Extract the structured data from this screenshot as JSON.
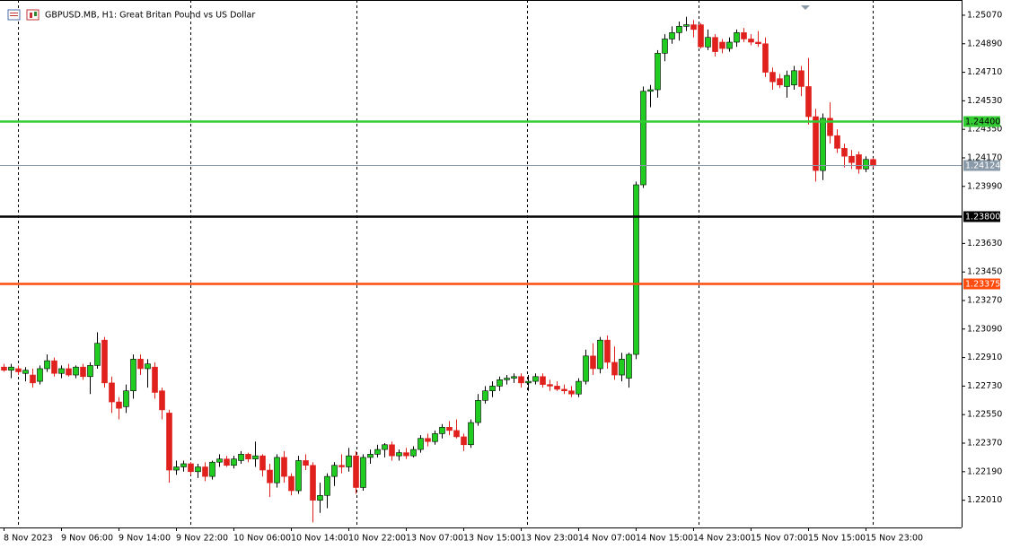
{
  "chart_data": {
    "type": "candlestick",
    "title": "GBPUSD.MB, H1:  Great Britan Pound vs US Dollar",
    "up_color": "#1fcc1f",
    "down_color": "#e0201c",
    "categories": [
      "8 Nov 2023",
      null,
      null,
      null,
      null,
      null,
      null,
      null,
      "9 Nov 06:00",
      null,
      null,
      null,
      null,
      null,
      null,
      null,
      "9 Nov 14:00",
      null,
      null,
      null,
      null,
      null,
      null,
      null,
      "9 Nov 22:00",
      null,
      null,
      null,
      null,
      null,
      null,
      null,
      "10 Nov 06:00",
      null,
      null,
      null,
      null,
      null,
      null,
      null,
      "10 Nov 14:00",
      null,
      null,
      null,
      null,
      null,
      null,
      null,
      "10 Nov 22:00",
      null,
      null,
      null,
      null,
      null,
      null,
      null,
      "13 Nov 07:00",
      null,
      null,
      null,
      null,
      null,
      null,
      null,
      "13 Nov 15:00",
      null,
      null,
      null,
      null,
      null,
      null,
      null,
      "13 Nov 23:00",
      null,
      null,
      null,
      null,
      null,
      null,
      null,
      "14 Nov 07:00",
      null,
      null,
      null,
      null,
      null,
      null,
      null,
      "14 Nov 15:00",
      null,
      null,
      null,
      null,
      null,
      null,
      null,
      "14 Nov 23:00",
      null,
      null,
      null,
      null,
      null,
      null,
      null,
      "15 Nov 07:00",
      null,
      null,
      null,
      null,
      null,
      null,
      null,
      "15 Nov 15:00",
      null,
      null,
      null,
      null,
      null,
      null,
      null,
      "15 Nov 23:00",
      null
    ],
    "open": [
      1.2285,
      1.2283,
      1.2284,
      1.2281,
      1.228,
      1.2276,
      1.2284,
      1.2289,
      1.2281,
      1.2284,
      1.228,
      1.2285,
      1.2279,
      1.2286,
      1.2302,
      1.2275,
      1.2263,
      1.226,
      1.227,
      1.229,
      1.2284,
      1.2285,
      1.227,
      1.2256,
      1.222,
      1.2222,
      1.2224,
      1.2219,
      1.2222,
      1.2216,
      1.2225,
      1.2227,
      1.2223,
      1.2226,
      1.223,
      1.2227,
      1.2229,
      1.222,
      1.2212,
      1.2228,
      1.2216,
      1.2207,
      1.2226,
      1.2223,
      1.2201,
      1.2204,
      1.2216,
      1.2223,
      1.2222,
      1.2229,
      1.2209,
      1.2228,
      1.223,
      1.2233,
      1.2236,
      1.2229,
      1.2231,
      1.2229,
      1.2233,
      1.224,
      1.2238,
      1.2243,
      1.2247,
      1.2245,
      1.2241,
      1.2236,
      1.225,
      1.2264,
      1.227,
      1.2273,
      1.2277,
      1.2278,
      1.2279,
      1.2275,
      1.2276,
      1.2279,
      1.2274,
      1.2273,
      1.2271,
      1.227,
      1.2268,
      1.2276,
      1.2292,
      1.2284,
      1.2302,
      1.2288,
      1.228,
      1.2278,
      1.2293,
      1.24,
      1.2459,
      1.246,
      1.2483,
      1.2492,
      1.2496,
      1.25,
      1.2501,
      1.2501,
      1.2487,
      1.2493,
      1.249,
      1.2486,
      1.249,
      1.2496,
      1.2492,
      1.249,
      1.2489,
      1.2471,
      1.2467,
      1.2462,
      1.2463,
      1.2472,
      1.2462,
      1.2443,
      1.2409,
      1.2442,
      1.2431,
      1.2423,
      1.2418,
      1.2419,
      1.241,
      1.2416
    ],
    "high": [
      1.2287,
      1.2287,
      1.2286,
      1.2285,
      1.2284,
      1.2286,
      1.2293,
      1.2291,
      1.2286,
      1.2287,
      1.2286,
      1.2287,
      1.2288,
      1.2307,
      1.2304,
      1.2279,
      1.2266,
      1.2274,
      1.2293,
      1.2293,
      1.229,
      1.2288,
      1.2272,
      1.2258,
      1.2226,
      1.2226,
      1.2225,
      1.2224,
      1.2225,
      1.2226,
      1.223,
      1.2229,
      1.2229,
      1.2232,
      1.2231,
      1.2238,
      1.223,
      1.2224,
      1.223,
      1.2232,
      1.2218,
      1.2229,
      1.223,
      1.2225,
      1.2212,
      1.2218,
      1.2225,
      1.223,
      1.2234,
      1.2232,
      1.223,
      1.2233,
      1.2236,
      1.2237,
      1.2238,
      1.2233,
      1.2234,
      1.2235,
      1.2242,
      1.2243,
      1.2245,
      1.2249,
      1.2251,
      1.2252,
      1.2243,
      1.2252,
      1.2268,
      1.2273,
      1.2276,
      1.2279,
      1.228,
      1.2281,
      1.2281,
      1.228,
      1.2281,
      1.2281,
      1.2277,
      1.2276,
      1.2274,
      1.2273,
      1.2278,
      1.2296,
      1.23,
      1.2304,
      1.2305,
      1.2298,
      1.2294,
      1.2294,
      1.2402,
      1.2462,
      1.2463,
      1.2485,
      1.2495,
      1.25,
      1.2503,
      1.2506,
      1.2504,
      1.2502,
      1.2498,
      1.2495,
      1.2492,
      1.2493,
      1.2498,
      1.2499,
      1.2495,
      1.2497,
      1.2493,
      1.2474,
      1.247,
      1.2472,
      1.2475,
      1.2475,
      1.248,
      1.2448,
      1.2445,
      1.2452,
      1.2435,
      1.2426,
      1.2422,
      1.2421,
      1.2418,
      1.2417
    ],
    "low": [
      1.2282,
      1.2278,
      1.228,
      1.2276,
      1.2272,
      1.2274,
      1.2282,
      1.2279,
      1.2278,
      1.2279,
      1.2278,
      1.2277,
      1.2268,
      1.2284,
      1.2272,
      1.2256,
      1.2252,
      1.2256,
      1.2265,
      1.228,
      1.2272,
      1.2265,
      1.2252,
      1.2212,
      1.2217,
      1.2219,
      1.2217,
      1.2215,
      1.2213,
      1.2214,
      1.2222,
      1.2222,
      1.2221,
      1.2224,
      1.2225,
      1.2222,
      1.2216,
      1.2203,
      1.2209,
      1.2212,
      1.2204,
      1.2205,
      1.222,
      1.2187,
      1.2193,
      1.2196,
      1.221,
      1.2218,
      1.2219,
      1.2205,
      1.2207,
      1.2224,
      1.2228,
      1.2228,
      1.2226,
      1.2226,
      1.2227,
      1.2228,
      1.2231,
      1.2235,
      1.2236,
      1.224,
      1.2242,
      1.224,
      1.2232,
      1.2234,
      1.2248,
      1.2262,
      1.2266,
      1.227,
      1.2274,
      1.2275,
      1.2272,
      1.227,
      1.2274,
      1.2272,
      1.227,
      1.227,
      1.2268,
      1.2266,
      1.2266,
      1.2274,
      1.228,
      1.2281,
      1.2284,
      1.2277,
      1.2276,
      1.2272,
      1.229,
      1.2398,
      1.2449,
      1.2455,
      1.2478,
      1.2489,
      1.2491,
      1.2497,
      1.2493,
      1.2486,
      1.2485,
      1.2481,
      1.2483,
      1.2484,
      1.2487,
      1.249,
      1.2488,
      1.2487,
      1.2468,
      1.246,
      1.2461,
      1.2455,
      1.246,
      1.2456,
      1.2438,
      1.2402,
      1.2403,
      1.2426,
      1.242,
      1.2411,
      1.241,
      1.2407,
      1.2408,
      1.2411
    ],
    "close": [
      1.2283,
      1.2285,
      1.2282,
      1.2283,
      1.2275,
      1.2284,
      1.2289,
      1.2281,
      1.2284,
      1.228,
      1.2285,
      1.2279,
      1.2286,
      1.23,
      1.2275,
      1.2263,
      1.2259,
      1.227,
      1.229,
      1.2284,
      1.2287,
      1.2269,
      1.2258,
      1.222,
      1.2222,
      1.2224,
      1.2219,
      1.2222,
      1.2216,
      1.2225,
      1.2227,
      1.2223,
      1.2227,
      1.223,
      1.2227,
      1.2229,
      1.222,
      1.2212,
      1.2228,
      1.2216,
      1.2207,
      1.2226,
      1.2223,
      1.2201,
      1.2204,
      1.2216,
      1.2223,
      1.2222,
      1.2229,
      1.2209,
      1.2228,
      1.223,
      1.2233,
      1.2236,
      1.2229,
      1.2231,
      1.2229,
      1.2233,
      1.224,
      1.2238,
      1.2243,
      1.2247,
      1.2245,
      1.2241,
      1.2236,
      1.225,
      1.2264,
      1.227,
      1.2273,
      1.2277,
      1.2278,
      1.2279,
      1.2275,
      1.2276,
      1.2279,
      1.2274,
      1.2273,
      1.2271,
      1.227,
      1.2268,
      1.2276,
      1.2292,
      1.2284,
      1.2302,
      1.2288,
      1.228,
      1.229,
      1.2293,
      1.24,
      1.2459,
      1.246,
      1.2483,
      1.2492,
      1.2496,
      1.25,
      1.2501,
      1.2498,
      1.2487,
      1.2493,
      1.2484,
      1.2486,
      1.249,
      1.2496,
      1.2492,
      1.249,
      1.2489,
      1.2471,
      1.2465,
      1.2463,
      1.2469,
      1.2472,
      1.2462,
      1.2443,
      1.2409,
      1.2442,
      1.2431,
      1.2423,
      1.2418,
      1.2414,
      1.241,
      1.2416,
      1.2412
    ],
    "ylim": [
      1.21838,
      1.25166
    ],
    "yticks": [
      {
        "value": 1.2507,
        "label": "1.25070"
      },
      {
        "value": 1.2489,
        "label": "1.24890"
      },
      {
        "value": 1.2471,
        "label": "1.24710"
      },
      {
        "value": 1.2453,
        "label": "1.24530"
      },
      {
        "value": 1.2435,
        "label": "1.24350"
      },
      {
        "value": 1.2417,
        "label": "1.24170"
      },
      {
        "value": 1.2399,
        "label": "1.23990"
      },
      {
        "value": 1.2363,
        "label": "1.23630"
      },
      {
        "value": 1.2345,
        "label": "1.23450"
      },
      {
        "value": 1.2327,
        "label": "1.23270"
      },
      {
        "value": 1.2309,
        "label": "1.23090"
      },
      {
        "value": 1.2291,
        "label": "1.22910"
      },
      {
        "value": 1.2273,
        "label": "1.22730"
      },
      {
        "value": 1.2255,
        "label": "1.22550"
      },
      {
        "value": 1.2237,
        "label": "1.22370"
      },
      {
        "value": 1.2219,
        "label": "1.22190"
      },
      {
        "value": 1.2201,
        "label": "1.22010"
      }
    ],
    "hlines": [
      {
        "value": 1.244,
        "label": "1.24400",
        "color": "#33cc33",
        "text_color": "#000000"
      },
      {
        "value": 1.24124,
        "label": "1.24124",
        "color": "#8a9aa8",
        "text_color": "#ffffff"
      },
      {
        "value": 1.238,
        "label": "1.23800",
        "color": "#000000",
        "text_color": "#ffffff"
      },
      {
        "value": 1.23375,
        "label": "1.23375",
        "color": "#ff4c0f",
        "text_color": "#ffffff"
      }
    ]
  }
}
